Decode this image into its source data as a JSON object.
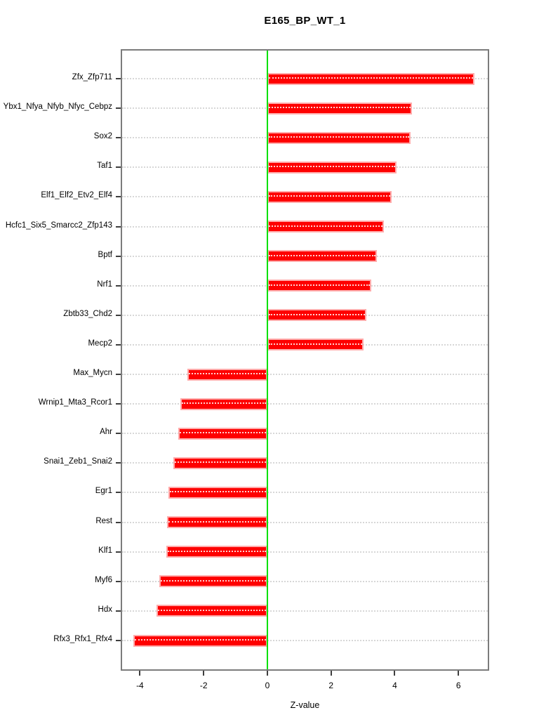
{
  "title": "E165_BP_WT_1",
  "chart_data": {
    "type": "bar",
    "orientation": "horizontal",
    "title": "E165_BP_WT_1",
    "xlabel": "Z-value",
    "categories": [
      "Zfx_Zfp711",
      "Ybx1_Nfya_Nfyb_Nfyc_Cebpz",
      "Sox2",
      "Taf1",
      "Elf1_Elf2_Etv2_Elf4",
      "Hcfc1_Six5_Smarcc2_Zfp143",
      "Bptf",
      "Nrf1",
      "Zbtb33_Chd2",
      "Mecp2",
      "Max_Mycn",
      "Wrnip1_Mta3_Rcor1",
      "Ahr",
      "Snai1_Zeb1_Snai2",
      "Egr1",
      "Rest",
      "Klf1",
      "Myf6",
      "Hdx",
      "Rfx3_Rfx1_Rfx4"
    ],
    "values": [
      6.5,
      4.55,
      4.5,
      4.05,
      3.9,
      3.67,
      3.43,
      3.27,
      3.1,
      3.03,
      -2.5,
      -2.74,
      -2.79,
      -2.95,
      -3.1,
      -3.15,
      -3.18,
      -3.4,
      -3.48,
      -4.2
    ],
    "x_ticks": [
      -4,
      -2,
      0,
      2,
      4,
      6
    ],
    "xlim": [
      -4.56,
      6.92
    ],
    "grid": "dotted-row-lines",
    "legend": "none",
    "colors": {
      "bar_fill": "#fe0000",
      "bar_border": "#ffabab",
      "zero_line": "#00e100",
      "row_dots": "#d7d7d7",
      "plot_border": "#7b7b7b",
      "tick": "#3e3e3e",
      "text": "#000000",
      "background": "#ffffff"
    }
  }
}
